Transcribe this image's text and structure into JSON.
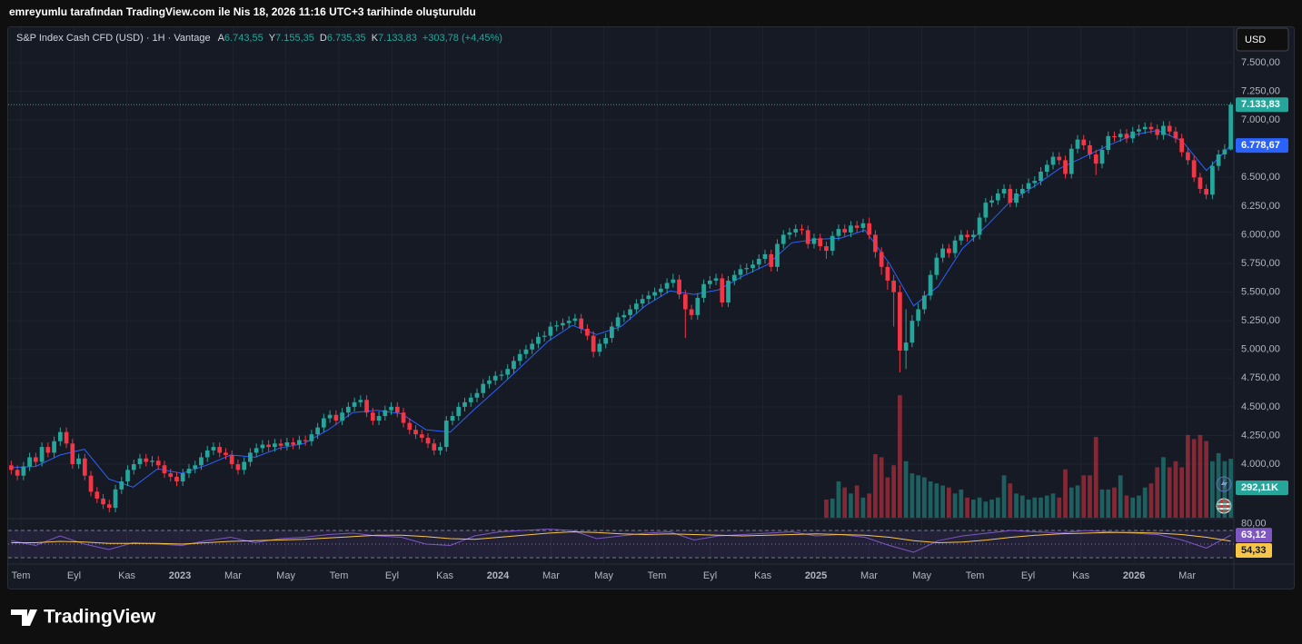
{
  "chart_data": {
    "type": "candlestick",
    "caption": "emreyumlu tarafından TradingView.com ile Nis 18, 2026 11:16 UTC+3 tarihinde oluşturuldu",
    "legend": {
      "symbol": "S&P Index Cash CFD (USD) · 1H · Vantage",
      "items": [
        {
          "key": "A",
          "value": "6.743,55"
        },
        {
          "key": "Y",
          "value": "7.155,35"
        },
        {
          "key": "D",
          "value": "6.735,35"
        },
        {
          "key": "K",
          "value": "7.133,83"
        }
      ],
      "change": "+303,78 (+4,45%)"
    },
    "currency": "USD",
    "logo": "TradingView",
    "grid": true,
    "up_color": "#26a69a",
    "down_color": "#f23645",
    "xlim": [
      2022.46,
      2026.314
    ],
    "xticks": [
      {
        "value": 2022.5,
        "label": "Tem"
      },
      {
        "value": 2022.667,
        "label": "Eyl"
      },
      {
        "value": 2022.833,
        "label": "Kas"
      },
      2023,
      {
        "value": 2023.167,
        "label": "Mar"
      },
      {
        "value": 2023.333,
        "label": "May"
      },
      {
        "value": 2023.5,
        "label": "Tem"
      },
      {
        "value": 2023.667,
        "label": "Eyl"
      },
      {
        "value": 2023.833,
        "label": "Kas"
      },
      2024,
      {
        "value": 2024.167,
        "label": "Mar"
      },
      {
        "value": 2024.333,
        "label": "May"
      },
      {
        "value": 2024.5,
        "label": "Tem"
      },
      {
        "value": 2024.667,
        "label": "Eyl"
      },
      {
        "value": 2024.833,
        "label": "Kas"
      },
      2025,
      {
        "value": 2025.167,
        "label": "Mar"
      },
      {
        "value": 2025.333,
        "label": "May"
      },
      {
        "value": 2025.5,
        "label": "Tem"
      },
      {
        "value": 2025.667,
        "label": "Eyl"
      },
      {
        "value": 2025.833,
        "label": "Kas"
      },
      2026,
      {
        "value": 2026.167,
        "label": "Mar"
      }
    ],
    "ylim": [
      3533,
      7809
    ],
    "yticks": [
      {
        "value": 4000,
        "label": "4.000,00"
      },
      {
        "value": 4250,
        "label": "4.250,00"
      },
      {
        "value": 4500,
        "label": "4.500,00"
      },
      {
        "value": 4750,
        "label": "4.750,00"
      },
      {
        "value": 5000,
        "label": "5.000,00"
      },
      {
        "value": 5250,
        "label": "5.250,00"
      },
      {
        "value": 5500,
        "label": "5.500,00"
      },
      {
        "value": 5750,
        "label": "5.750,00"
      },
      {
        "value": 6000,
        "label": "6.000,00"
      },
      {
        "value": 6250,
        "label": "6.250,00"
      },
      {
        "value": 6500,
        "label": "6.500,00"
      },
      {
        "value": 6750,
        "label": "6.750,00"
      },
      {
        "value": 7000,
        "label": "7.000,00"
      },
      {
        "value": 7250,
        "label": "7.250,00"
      },
      {
        "value": 7500,
        "label": "7.500,00"
      }
    ],
    "open": [
      3990,
      3950,
      3900,
      3980,
      4060,
      4020,
      4150,
      4100,
      4200,
      4280,
      4180,
      4000,
      4050,
      3900,
      3760,
      3700,
      3650,
      3620,
      3780,
      3850,
      3950,
      4000,
      4050,
      4020,
      4030,
      3990,
      3920,
      3890,
      3850,
      3920,
      3960,
      3990,
      4060,
      4120,
      4150,
      4100,
      4080,
      4000,
      3950,
      4020,
      4100,
      4140,
      4170,
      4150,
      4180,
      4160,
      4190,
      4170,
      4210,
      4200,
      4260,
      4320,
      4400,
      4430,
      4380,
      4450,
      4500,
      4540,
      4560,
      4450,
      4380,
      4420,
      4470,
      4500,
      4450,
      4360,
      4300,
      4260,
      4230,
      4180,
      4120,
      4150,
      4380,
      4420,
      4500,
      4540,
      4580,
      4620,
      4700,
      4730,
      4770,
      4780,
      4830,
      4900,
      4960,
      5000,
      5050,
      5110,
      5120,
      5200,
      5210,
      5230,
      5250,
      5270,
      5180,
      5120,
      4980,
      5050,
      5100,
      5200,
      5280,
      5300,
      5350,
      5400,
      5440,
      5470,
      5500,
      5530,
      5580,
      5610,
      5480,
      5350,
      5300,
      5450,
      5570,
      5600,
      5620,
      5410,
      5600,
      5650,
      5700,
      5710,
      5740,
      5790,
      5830,
      5720,
      5920,
      6000,
      6020,
      6050,
      6040,
      5920,
      5970,
      5900,
      5860,
      5990,
      6050,
      6020,
      6080,
      6060,
      6100,
      6000,
      5850,
      5720,
      5600,
      5500,
      4990,
      5060,
      5250,
      5350,
      5470,
      5650,
      5800,
      5880,
      5840,
      5950,
      6000,
      5980,
      6000,
      6150,
      6280,
      6300,
      6360,
      6400,
      6280,
      6360,
      6400,
      6450,
      6470,
      6550,
      6610,
      6680,
      6650,
      6530,
      6750,
      6830,
      6780,
      6700,
      6620,
      6740,
      6860,
      6850,
      6880,
      6840,
      6900,
      6920,
      6940,
      6920,
      6870,
      6950,
      6900,
      6840,
      6720,
      6650,
      6500,
      6400,
      6350,
      6600,
      6700,
      6743.55
    ],
    "high": [
      4030,
      3990,
      4020,
      4100,
      4100,
      4190,
      4190,
      4240,
      4320,
      4320,
      4220,
      4090,
      4090,
      3940,
      3800,
      3740,
      3690,
      3820,
      3890,
      3990,
      4040,
      4090,
      4090,
      4070,
      4070,
      4030,
      3960,
      3930,
      3960,
      4000,
      4030,
      4100,
      4160,
      4190,
      4190,
      4140,
      4120,
      4040,
      4060,
      4140,
      4180,
      4210,
      4210,
      4220,
      4220,
      4230,
      4230,
      4250,
      4250,
      4300,
      4360,
      4440,
      4470,
      4470,
      4490,
      4540,
      4580,
      4600,
      4600,
      4490,
      4460,
      4510,
      4540,
      4540,
      4490,
      4400,
      4340,
      4300,
      4270,
      4220,
      4190,
      4420,
      4460,
      4540,
      4580,
      4620,
      4660,
      4740,
      4770,
      4810,
      4820,
      4870,
      4940,
      5000,
      5040,
      5090,
      5150,
      5160,
      5240,
      5250,
      5270,
      5290,
      5310,
      5310,
      5220,
      5160,
      5090,
      5140,
      5240,
      5320,
      5340,
      5390,
      5440,
      5480,
      5510,
      5540,
      5570,
      5620,
      5660,
      5650,
      5520,
      5390,
      5490,
      5610,
      5640,
      5660,
      5660,
      5640,
      5690,
      5740,
      5750,
      5780,
      5830,
      5870,
      5870,
      5960,
      6040,
      6060,
      6090,
      6090,
      6080,
      6010,
      6010,
      5940,
      6030,
      6090,
      6090,
      6120,
      6120,
      6140,
      6150,
      6040,
      5890,
      5760,
      5650,
      5560,
      5350,
      5300,
      5400,
      5510,
      5690,
      5840,
      5920,
      5920,
      5990,
      6040,
      6040,
      6040,
      6190,
      6320,
      6340,
      6400,
      6440,
      6440,
      6400,
      6440,
      6490,
      6510,
      6590,
      6650,
      6720,
      6720,
      6690,
      6790,
      6870,
      6870,
      6820,
      6740,
      6780,
      6900,
      6900,
      6920,
      6920,
      6940,
      6960,
      6980,
      6980,
      6960,
      6990,
      6990,
      6940,
      6880,
      6760,
      6690,
      6540,
      6440,
      6640,
      6740,
      6790,
      7155.35
    ],
    "low": [
      3910,
      3860,
      3860,
      3940,
      3980,
      3980,
      4060,
      4060,
      4160,
      4140,
      3960,
      3960,
      3860,
      3720,
      3660,
      3610,
      3580,
      3580,
      3740,
      3810,
      3910,
      3960,
      3980,
      3980,
      3950,
      3880,
      3850,
      3810,
      3810,
      3880,
      3920,
      3950,
      4020,
      4080,
      4060,
      4040,
      3960,
      3910,
      3910,
      3980,
      4060,
      4100,
      4110,
      4110,
      4120,
      4120,
      4130,
      4130,
      4160,
      4160,
      4220,
      4280,
      4360,
      4340,
      4340,
      4410,
      4460,
      4500,
      4410,
      4340,
      4340,
      4380,
      4430,
      4410,
      4320,
      4260,
      4220,
      4190,
      4140,
      4080,
      4080,
      4110,
      4340,
      4380,
      4460,
      4500,
      4540,
      4580,
      4660,
      4690,
      4730,
      4740,
      4790,
      4860,
      4920,
      4960,
      5010,
      5070,
      5080,
      5160,
      5170,
      5190,
      5210,
      5140,
      5080,
      4930,
      4940,
      5010,
      5060,
      5160,
      5240,
      5260,
      5310,
      5360,
      5400,
      5430,
      5460,
      5490,
      5540,
      5440,
      5100,
      5260,
      5260,
      5410,
      5530,
      5560,
      5370,
      5370,
      5560,
      5610,
      5660,
      5670,
      5700,
      5750,
      5680,
      5680,
      5880,
      5960,
      5980,
      6000,
      5880,
      5880,
      5860,
      5790,
      5820,
      5950,
      5980,
      5980,
      6020,
      6020,
      5960,
      5800,
      5650,
      5520,
      5200,
      4800,
      4830,
      5020,
      5200,
      5310,
      5430,
      5610,
      5760,
      5800,
      5800,
      5910,
      5940,
      5940,
      5960,
      6110,
      6240,
      6260,
      6320,
      6240,
      6240,
      6320,
      6360,
      6410,
      6430,
      6510,
      6570,
      6610,
      6490,
      6490,
      6710,
      6740,
      6660,
      6520,
      6580,
      6700,
      6810,
      6810,
      6800,
      6800,
      6860,
      6880,
      6880,
      6830,
      6830,
      6860,
      6800,
      6680,
      6610,
      6460,
      6360,
      6310,
      6310,
      6560,
      6660,
      6735.35
    ],
    "close": [
      3950,
      3900,
      3980,
      4060,
      4020,
      4150,
      4100,
      4200,
      4280,
      4180,
      4000,
      4050,
      3900,
      3760,
      3700,
      3650,
      3620,
      3780,
      3850,
      3950,
      4000,
      4050,
      4020,
      4030,
      3990,
      3920,
      3890,
      3850,
      3920,
      3960,
      3990,
      4060,
      4120,
      4150,
      4100,
      4080,
      4000,
      3950,
      4020,
      4100,
      4140,
      4170,
      4150,
      4180,
      4160,
      4190,
      4170,
      4210,
      4200,
      4260,
      4320,
      4400,
      4430,
      4380,
      4450,
      4500,
      4540,
      4560,
      4450,
      4380,
      4420,
      4470,
      4500,
      4450,
      4360,
      4300,
      4260,
      4230,
      4180,
      4120,
      4150,
      4380,
      4420,
      4500,
      4540,
      4580,
      4620,
      4700,
      4730,
      4770,
      4780,
      4830,
      4900,
      4960,
      5000,
      5050,
      5110,
      5120,
      5200,
      5210,
      5230,
      5250,
      5270,
      5180,
      5120,
      4980,
      5050,
      5100,
      5200,
      5280,
      5300,
      5350,
      5400,
      5440,
      5470,
      5500,
      5530,
      5580,
      5610,
      5480,
      5350,
      5300,
      5450,
      5570,
      5600,
      5620,
      5410,
      5600,
      5650,
      5700,
      5710,
      5740,
      5790,
      5830,
      5720,
      5920,
      6000,
      6020,
      6050,
      6040,
      5920,
      5970,
      5900,
      5860,
      5990,
      6050,
      6020,
      6080,
      6060,
      6100,
      6000,
      5850,
      5720,
      5600,
      5500,
      4990,
      5060,
      5250,
      5350,
      5470,
      5650,
      5800,
      5880,
      5840,
      5950,
      6000,
      5980,
      6000,
      6150,
      6280,
      6300,
      6360,
      6400,
      6280,
      6360,
      6400,
      6450,
      6470,
      6550,
      6610,
      6680,
      6650,
      6530,
      6750,
      6830,
      6780,
      6700,
      6620,
      6740,
      6860,
      6850,
      6880,
      6840,
      6900,
      6920,
      6940,
      6920,
      6870,
      6950,
      6900,
      6840,
      6720,
      6650,
      6500,
      6400,
      6350,
      6600,
      6700,
      6743.55,
      7133.83
    ],
    "last_close_label": "7.133,83",
    "ma": {
      "color": "#2962ff",
      "values": [
        3970,
        3980,
        4080,
        4130,
        3870,
        3800,
        3960,
        3920,
        3990,
        4080,
        4060,
        4140,
        4180,
        4300,
        4450,
        4470,
        4440,
        4300,
        4280,
        4480,
        4670,
        4870,
        5070,
        5210,
        5130,
        5200,
        5380,
        5510,
        5480,
        5520,
        5640,
        5740,
        5930,
        5960,
        5970,
        6040,
        5750,
        5380,
        5550,
        5880,
        6080,
        6300,
        6430,
        6580,
        6680,
        6780,
        6870,
        6910,
        6820,
        6560,
        6778.67
      ],
      "last_label": "6.778,67"
    },
    "volume": {
      "ylim": [
        0,
        2430
      ],
      "up_color": "rgba(38,166,154,0.5)",
      "down_color": "rgba(242,54,69,0.5)",
      "last_label": "292,11K",
      "values": [
        null,
        null,
        null,
        null,
        null,
        null,
        null,
        null,
        null,
        null,
        null,
        null,
        null,
        null,
        null,
        null,
        null,
        null,
        null,
        null,
        null,
        null,
        null,
        null,
        null,
        null,
        null,
        null,
        null,
        null,
        null,
        null,
        null,
        null,
        null,
        null,
        null,
        null,
        null,
        null,
        null,
        null,
        null,
        null,
        null,
        null,
        null,
        null,
        null,
        null,
        null,
        null,
        null,
        null,
        null,
        null,
        null,
        null,
        null,
        null,
        null,
        null,
        null,
        null,
        null,
        null,
        null,
        null,
        null,
        null,
        null,
        null,
        null,
        null,
        null,
        null,
        null,
        null,
        null,
        null,
        null,
        null,
        null,
        null,
        null,
        null,
        null,
        null,
        null,
        null,
        null,
        null,
        null,
        null,
        null,
        null,
        null,
        null,
        null,
        null,
        null,
        null,
        null,
        null,
        null,
        null,
        null,
        null,
        null,
        null,
        null,
        null,
        null,
        null,
        null,
        null,
        null,
        null,
        null,
        null,
        null,
        null,
        null,
        null,
        null,
        null,
        null,
        null,
        null,
        null,
        null,
        null,
        null,
        90,
        95,
        180,
        150,
        120,
        160,
        100,
        120,
        315,
        300,
        200,
        260,
        607,
        280,
        220,
        210,
        200,
        180,
        170,
        160,
        150,
        120,
        140,
        100,
        90,
        100,
        80,
        90,
        100,
        210,
        170,
        120,
        110,
        90,
        100,
        100,
        110,
        120,
        100,
        240,
        150,
        160,
        210,
        210,
        400,
        140,
        140,
        150,
        210,
        110,
        100,
        110,
        150,
        170,
        250,
        300,
        250,
        280,
        250,
        410,
        390,
        410,
        380,
        280,
        320,
        280,
        292.11
      ]
    },
    "rsi": {
      "ylim": [
        22,
        86
      ],
      "yticks": [
        {
          "value": 80,
          "label": "80,00"
        }
      ],
      "levels": [
        30,
        50,
        70
      ],
      "band_color": "rgba(126,87,194,0.12)",
      "series": [
        {
          "color": "#7e57c2",
          "values": [
            55,
            48,
            62,
            50,
            42,
            52,
            50,
            48,
            55,
            60,
            52,
            58,
            60,
            64,
            66,
            62,
            60,
            50,
            48,
            62,
            68,
            70,
            72,
            70,
            58,
            62,
            66,
            68,
            56,
            62,
            64,
            66,
            68,
            62,
            64,
            60,
            48,
            38,
            55,
            62,
            66,
            70,
            68,
            66,
            70,
            68,
            66,
            64,
            56,
            44,
            63.12
          ],
          "last_label": "63,12"
        },
        {
          "color": "#f7c548",
          "values": [
            52,
            52,
            54,
            53,
            51,
            51,
            51,
            50,
            52,
            54,
            55,
            56,
            57,
            59,
            61,
            63,
            63,
            61,
            58,
            57,
            60,
            63,
            66,
            68,
            67,
            65,
            64,
            65,
            64,
            63,
            62,
            63,
            64,
            65,
            64,
            63,
            60,
            55,
            52,
            53,
            56,
            60,
            63,
            65,
            66,
            67,
            67,
            66,
            64,
            60,
            54.33
          ],
          "last_label": "54,33"
        }
      ]
    }
  }
}
